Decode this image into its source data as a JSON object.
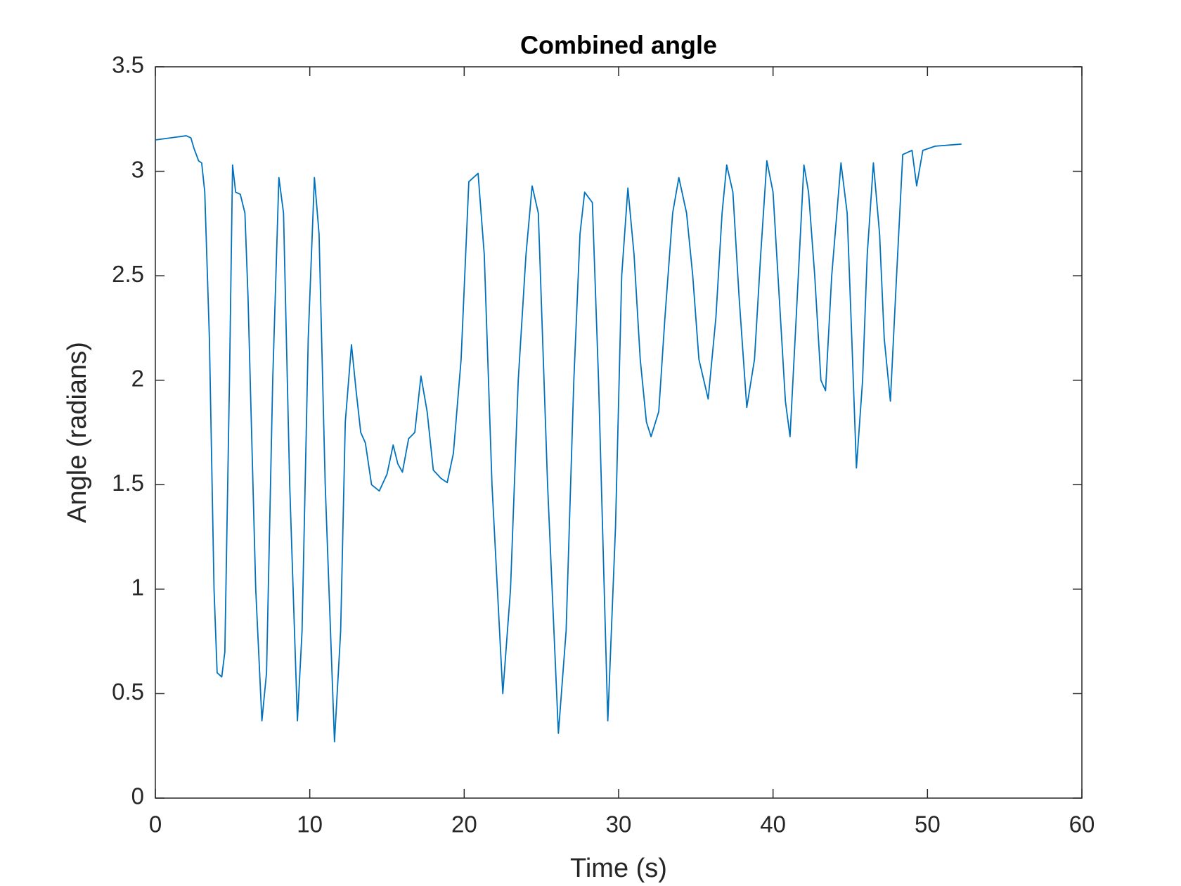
{
  "chart_data": {
    "type": "line",
    "title": "Combined angle",
    "x_label": "Time (s)",
    "y_label": "Angle (radians)",
    "x": [
      0,
      2,
      2.3,
      2.5,
      2.8,
      3.0,
      3.2,
      3.5,
      3.8,
      4.0,
      4.3,
      4.5,
      4.8,
      5.0,
      5.2,
      5.5,
      5.8,
      6.0,
      6.5,
      6.9,
      7.2,
      7.6,
      8.0,
      8.3,
      8.7,
      9.2,
      9.5,
      9.9,
      10.3,
      10.6,
      11.0,
      11.6,
      12.0,
      12.3,
      12.7,
      13.0,
      13.3,
      13.6,
      14.0,
      14.5,
      15.0,
      15.4,
      15.7,
      16.0,
      16.4,
      16.8,
      17.2,
      17.6,
      18.0,
      18.5,
      18.9,
      19.3,
      19.8,
      20.3,
      20.9,
      21.3,
      21.8,
      22.5,
      23.0,
      23.5,
      24.0,
      24.4,
      24.8,
      25.4,
      26.1,
      26.6,
      27.1,
      27.5,
      27.8,
      28.3,
      28.7,
      29.3,
      29.8,
      30.2,
      30.6,
      31.0,
      31.4,
      31.8,
      32.1,
      32.6,
      33.0,
      33.5,
      33.9,
      34.4,
      34.8,
      35.2,
      35.8,
      36.3,
      36.7,
      37.0,
      37.4,
      37.8,
      38.3,
      38.8,
      39.2,
      39.6,
      40.0,
      40.4,
      40.8,
      41.1,
      41.5,
      42.0,
      42.3,
      42.7,
      43.1,
      43.4,
      43.8,
      44.4,
      44.8,
      45.1,
      45.4,
      45.8,
      46.1,
      46.5,
      46.9,
      47.2,
      47.6,
      48.0,
      48.4,
      48.7,
      49.0,
      49.3,
      49.7,
      50.5,
      52.2
    ],
    "series": [
      {
        "color": "#0072bd",
        "values": [
          3.15,
          3.17,
          3.16,
          3.11,
          3.05,
          3.04,
          2.9,
          2.2,
          1.0,
          0.6,
          0.58,
          0.7,
          2.0,
          3.03,
          2.9,
          2.89,
          2.8,
          2.4,
          1.0,
          0.37,
          0.6,
          2.0,
          2.97,
          2.8,
          1.5,
          0.37,
          0.8,
          2.2,
          2.97,
          2.7,
          1.5,
          0.27,
          0.8,
          1.8,
          2.17,
          1.95,
          1.75,
          1.7,
          1.5,
          1.47,
          1.55,
          1.69,
          1.6,
          1.56,
          1.72,
          1.75,
          2.02,
          1.85,
          1.57,
          1.53,
          1.51,
          1.65,
          2.1,
          2.95,
          2.99,
          2.6,
          1.5,
          0.5,
          1.0,
          2.0,
          2.6,
          2.93,
          2.8,
          1.5,
          0.31,
          0.8,
          2.0,
          2.7,
          2.9,
          2.85,
          2.0,
          0.37,
          1.3,
          2.5,
          2.92,
          2.6,
          2.1,
          1.8,
          1.73,
          1.85,
          2.3,
          2.8,
          2.97,
          2.8,
          2.5,
          2.1,
          1.91,
          2.3,
          2.8,
          3.03,
          2.9,
          2.4,
          1.87,
          2.1,
          2.6,
          3.05,
          2.9,
          2.4,
          1.9,
          1.73,
          2.3,
          3.03,
          2.9,
          2.5,
          2.0,
          1.95,
          2.5,
          3.04,
          2.8,
          2.2,
          1.58,
          2.0,
          2.6,
          3.04,
          2.7,
          2.2,
          1.9,
          2.5,
          3.08,
          3.09,
          3.1,
          2.93,
          3.1,
          3.12,
          3.13
        ]
      }
    ],
    "xlim": [
      0,
      60
    ],
    "xticks": [
      0,
      10,
      20,
      30,
      40,
      50,
      60
    ],
    "ylim": [
      0,
      3.5
    ],
    "yticks": [
      0,
      0.5,
      1,
      1.5,
      2,
      2.5,
      3,
      3.5
    ]
  }
}
